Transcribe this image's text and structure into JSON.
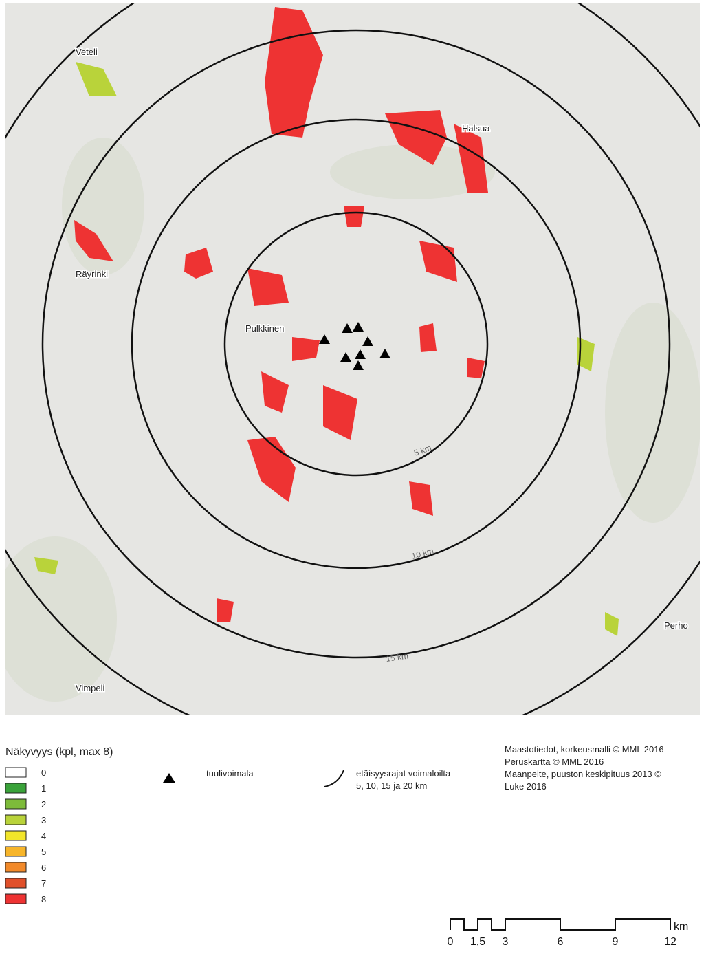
{
  "map": {
    "places": [
      "Veteli",
      "Halsua",
      "Räyrinki",
      "Pulkkinen",
      "Perho",
      "Vimpeli"
    ],
    "ring_labels": [
      "5 km",
      "10 km",
      "15 km"
    ],
    "legend": {
      "title": "Näkyvyys (kpl, max 8)",
      "items": [
        {
          "label": "0",
          "color": "#ffffff"
        },
        {
          "label": "1",
          "color": "#3aa33a"
        },
        {
          "label": "2",
          "color": "#7dbb3a"
        },
        {
          "label": "3",
          "color": "#b9d33a"
        },
        {
          "label": "4",
          "color": "#f2e52a"
        },
        {
          "label": "5",
          "color": "#f7b52a"
        },
        {
          "label": "6",
          "color": "#f28a2a"
        },
        {
          "label": "7",
          "color": "#e0502a"
        },
        {
          "label": "8",
          "color": "#ee3333"
        }
      ],
      "turbine": "tuulivoimala",
      "rings": [
        "etäisyysrajat voimaloilta",
        "5, 10, 15 ja 20 km"
      ]
    },
    "credits": [
      "Maastotiedot, korkeusmalli © MML 2016",
      "Peruskartta © MML 2016",
      "Maanpeite, puuston keskipituus 2013 ©",
      "Luke 2016"
    ],
    "scale_bar": {
      "labels": [
        "0",
        "1,5",
        "3",
        "6",
        "9",
        "12"
      ],
      "unit": "km"
    }
  }
}
